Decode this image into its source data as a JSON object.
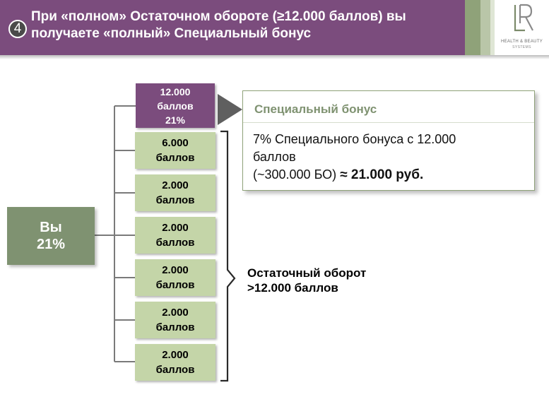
{
  "header": {
    "step_number": "4",
    "title_line1": "При «полном» Остаточном обороте (≥12.000 баллов) вы",
    "title_line2": "получаете «полный» Специальный бонус",
    "logo_text": "LR",
    "logo_line1": "HEALTH & BEAUTY",
    "logo_line2": "SYSTEMS"
  },
  "you": {
    "label": "Вы",
    "percent": "21%"
  },
  "partners": [
    {
      "points": "12.000",
      "unit": "баллов",
      "percent": "21%",
      "highlight": true
    },
    {
      "points": "6.000",
      "unit": "баллов"
    },
    {
      "points": "2.000",
      "unit": "баллов"
    },
    {
      "points": "2.000",
      "unit": "баллов"
    },
    {
      "points": "2.000",
      "unit": "баллов"
    },
    {
      "points": "2.000",
      "unit": "баллов"
    },
    {
      "points": "2.000",
      "unit": "баллов"
    }
  ],
  "bonus": {
    "title": "Специальный бонус",
    "line1": "7% Специального бонуса с 12.000",
    "line2": "баллов",
    "line3": "(~300.000 БО) ",
    "approx": "≈ ",
    "amount": "21.000 руб."
  },
  "brace_label": {
    "line1": "Остаточный оборот",
    "line2": ">12.000 баллов"
  },
  "colors": {
    "purple": "#7b4c7d",
    "green_dark": "#7f9271",
    "green_light": "#c4d5a8"
  }
}
